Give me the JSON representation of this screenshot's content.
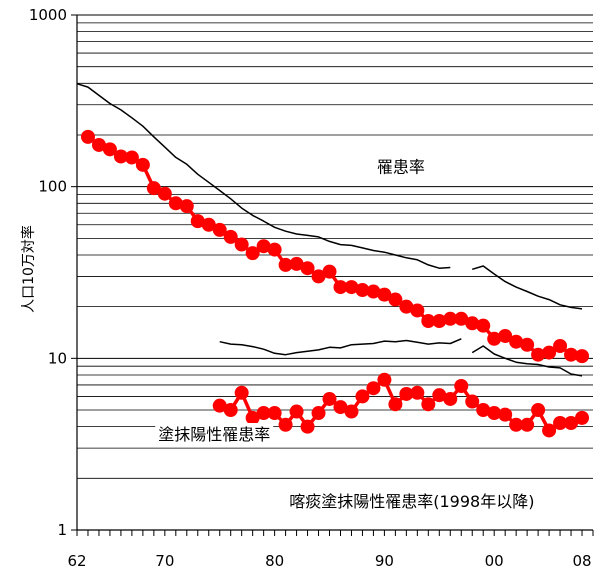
{
  "chart_data": {
    "type": "line",
    "title": "",
    "xlabel": "",
    "ylabel": "人口10万対率",
    "y_scale": "log",
    "ylim": [
      1,
      1000
    ],
    "xlim": [
      1962,
      2009
    ],
    "x_ticks": [
      {
        "value": 1962,
        "label": "62"
      },
      {
        "value": 1970,
        "label": "70"
      },
      {
        "value": 1980,
        "label": "80"
      },
      {
        "value": 1990,
        "label": "90"
      },
      {
        "value": 2000,
        "label": "00"
      },
      {
        "value": 2008,
        "label": "08"
      }
    ],
    "y_ticks": [
      {
        "value": 1,
        "label": "1"
      },
      {
        "value": 10,
        "label": "10"
      },
      {
        "value": 100,
        "label": "100"
      },
      {
        "value": 1000,
        "label": "1000"
      }
    ],
    "grid": {
      "horizontal": true,
      "vertical": false
    },
    "annotations": [
      {
        "text": "罹患率",
        "x": 1991.5,
        "y": 130
      },
      {
        "text": "塗抹陽性罹患率",
        "x": 1974.5,
        "y": 3.6
      },
      {
        "text": "喀痰塗抹陽性罹患率(1998年以降)",
        "x": 1992.5,
        "y": 1.47
      }
    ],
    "series": [
      {
        "style": "line",
        "color": "#000000",
        "segments": [
          [
            [
              1962,
              398
            ],
            [
              1963,
              380
            ],
            [
              1964,
              340
            ],
            [
              1965,
              305
            ],
            [
              1966,
              280
            ],
            [
              1967,
              252
            ],
            [
              1968,
              225
            ],
            [
              1969,
              195
            ],
            [
              1970,
              170
            ],
            [
              1971,
              148
            ],
            [
              1972,
              135
            ],
            [
              1973,
              118
            ],
            [
              1974,
              106
            ],
            [
              1975,
              95
            ],
            [
              1976,
              85
            ],
            [
              1977,
              75
            ],
            [
              1978,
              68
            ],
            [
              1979,
              63
            ],
            [
              1980,
              58
            ],
            [
              1981,
              55
            ],
            [
              1982,
              53
            ],
            [
              1983,
              52
            ],
            [
              1984,
              51
            ],
            [
              1985,
              48
            ],
            [
              1986,
              46
            ],
            [
              1987,
              45.5
            ],
            [
              1988,
              44
            ],
            [
              1989,
              42.5
            ],
            [
              1990,
              41.5
            ],
            [
              1991,
              40
            ],
            [
              1992,
              38.5
            ],
            [
              1993,
              37.5
            ],
            [
              1994,
              35
            ],
            [
              1995,
              33.5
            ],
            [
              1996,
              33.8
            ]
          ],
          [
            [
              1998,
              33
            ],
            [
              1999,
              34.5
            ],
            [
              2000,
              31
            ],
            [
              2001,
              28
            ],
            [
              2002,
              26
            ],
            [
              2003,
              24.5
            ],
            [
              2004,
              23
            ],
            [
              2005,
              22
            ],
            [
              2006,
              20.5
            ],
            [
              2007,
              19.8
            ],
            [
              2008,
              19.4
            ]
          ]
        ]
      },
      {
        "style": "line",
        "color": "#000000",
        "segments": [
          [
            [
              1975,
              12.5
            ],
            [
              1976,
              12.1
            ],
            [
              1977,
              12.0
            ],
            [
              1978,
              11.7
            ],
            [
              1979,
              11.3
            ],
            [
              1980,
              10.7
            ],
            [
              1981,
              10.5
            ],
            [
              1982,
              10.8
            ],
            [
              1983,
              11.0
            ],
            [
              1984,
              11.2
            ],
            [
              1985,
              11.6
            ],
            [
              1986,
              11.5
            ],
            [
              1987,
              12.0
            ],
            [
              1988,
              12.1
            ],
            [
              1989,
              12.2
            ],
            [
              1990,
              12.6
            ],
            [
              1991,
              12.5
            ],
            [
              1992,
              12.7
            ],
            [
              1993,
              12.4
            ],
            [
              1994,
              12.1
            ],
            [
              1995,
              12.3
            ],
            [
              1996,
              12.2
            ],
            [
              1997,
              13.0
            ]
          ],
          [
            [
              1998,
              10.8
            ],
            [
              1999,
              11.8
            ],
            [
              2000,
              10.6
            ],
            [
              2001,
              10.0
            ],
            [
              2002,
              9.5
            ],
            [
              2003,
              9.3
            ],
            [
              2004,
              9.2
            ],
            [
              2005,
              8.9
            ],
            [
              2006,
              8.8
            ],
            [
              2007,
              8.1
            ],
            [
              2008,
              7.9
            ]
          ]
        ]
      },
      {
        "style": "markers-line",
        "color": "#ff0000",
        "segments": [
          [
            [
              1963,
              195
            ],
            [
              1964,
              175
            ],
            [
              1965,
              165
            ],
            [
              1966,
              150
            ],
            [
              1967,
              148
            ],
            [
              1968,
              134
            ],
            [
              1969,
              98
            ],
            [
              1970,
              91
            ],
            [
              1971,
              80
            ],
            [
              1972,
              77
            ],
            [
              1973,
              63
            ],
            [
              1974,
              60
            ],
            [
              1975,
              56
            ],
            [
              1976,
              51
            ],
            [
              1977,
              46
            ],
            [
              1978,
              41
            ],
            [
              1979,
              45
            ],
            [
              1980,
              43
            ],
            [
              1981,
              35
            ],
            [
              1982,
              35.5
            ],
            [
              1983,
              33.5
            ],
            [
              1984,
              30
            ],
            [
              1985,
              32
            ],
            [
              1986,
              26
            ],
            [
              1987,
              26
            ],
            [
              1988,
              25
            ],
            [
              1989,
              24.5
            ],
            [
              1990,
              23.5
            ],
            [
              1991,
              22
            ],
            [
              1992,
              20
            ],
            [
              1993,
              19
            ],
            [
              1994,
              16.5
            ],
            [
              1995,
              16.5
            ],
            [
              1996,
              17
            ],
            [
              1997,
              17
            ],
            [
              1998,
              16
            ],
            [
              1999,
              15.5
            ],
            [
              2000,
              13
            ],
            [
              2001,
              13.5
            ],
            [
              2002,
              12.5
            ],
            [
              2003,
              12
            ],
            [
              2004,
              10.5
            ],
            [
              2005,
              10.8
            ],
            [
              2006,
              11.8
            ],
            [
              2007,
              10.5
            ],
            [
              2008,
              10.3
            ]
          ]
        ]
      },
      {
        "style": "markers-line",
        "color": "#ff0000",
        "segments": [
          [
            [
              1975,
              5.3
            ],
            [
              1976,
              5.0
            ],
            [
              1977,
              6.3
            ],
            [
              1978,
              4.5
            ],
            [
              1979,
              4.8
            ],
            [
              1980,
              4.8
            ],
            [
              1981,
              4.1
            ],
            [
              1982,
              4.9
            ],
            [
              1983,
              4.0
            ],
            [
              1984,
              4.8
            ],
            [
              1985,
              5.8
            ],
            [
              1986,
              5.2
            ],
            [
              1987,
              4.9
            ],
            [
              1988,
              6.0
            ],
            [
              1989,
              6.7
            ],
            [
              1990,
              7.5
            ],
            [
              1991,
              5.4
            ],
            [
              1992,
              6.2
            ],
            [
              1993,
              6.3
            ],
            [
              1994,
              5.4
            ],
            [
              1995,
              6.1
            ],
            [
              1996,
              5.8
            ],
            [
              1997,
              6.9
            ],
            [
              1998,
              5.6
            ],
            [
              1999,
              5.0
            ],
            [
              2000,
              4.8
            ],
            [
              2001,
              4.7
            ],
            [
              2002,
              4.1
            ],
            [
              2003,
              4.1
            ],
            [
              2004,
              5.0
            ],
            [
              2005,
              3.8
            ],
            [
              2006,
              4.2
            ],
            [
              2007,
              4.2
            ],
            [
              2008,
              4.5
            ]
          ]
        ]
      }
    ]
  }
}
